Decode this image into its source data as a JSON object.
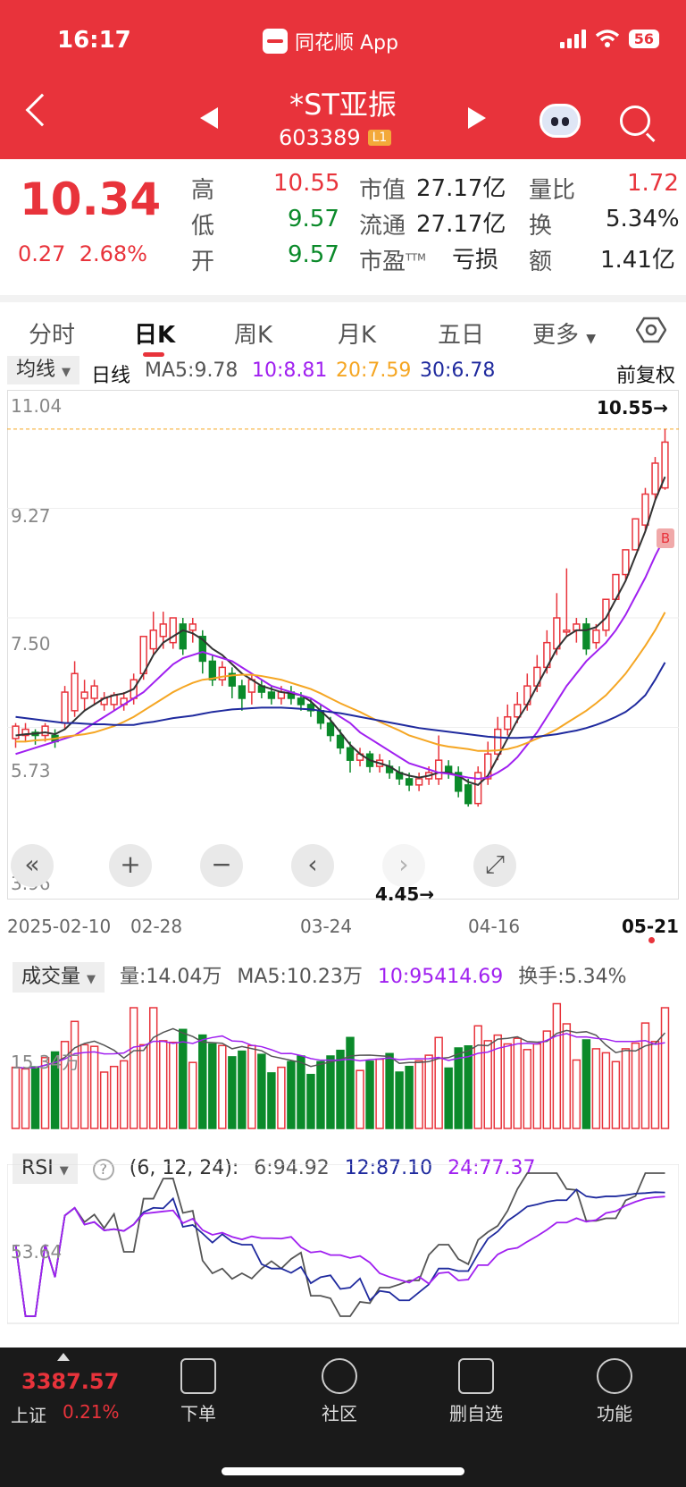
{
  "status": {
    "time": "16:17",
    "app": "同花顺 App",
    "battery": "56"
  },
  "header": {
    "name": "*ST亚振",
    "code": "603389",
    "level": "L1"
  },
  "quote": {
    "price": "10.34",
    "change": "0.27",
    "change_pct": "2.68%",
    "high_label": "高",
    "high": "10.55",
    "low_label": "低",
    "low": "9.57",
    "open_label": "开",
    "open": "9.57",
    "mktcap_label": "市值",
    "mktcap": "27.17亿",
    "float_label": "流通",
    "float": "27.17亿",
    "pe_label": "市盈",
    "pe_sup": "TTM",
    "pe": "亏损",
    "vr_label": "量比",
    "vr": "1.72",
    "turn_label": "换",
    "turn": "5.34%",
    "amt_label": "额",
    "amt": "1.41亿"
  },
  "tabs": [
    "分时",
    "日K",
    "周K",
    "月K",
    "五日",
    "更多"
  ],
  "ma_bar": {
    "btn": "均线",
    "period": "日线",
    "ma5": "MA5:9.78",
    "ma10": "10:8.81",
    "ma20": "20:7.59",
    "ma30": "30:6.78",
    "adjust": "前复权"
  },
  "kline": {
    "y_ticks": [
      "11.04",
      "9.27",
      "7.50",
      "5.73",
      "3.96"
    ],
    "max_label": "10.55→",
    "min_label": "4.45→",
    "b_marker": "B",
    "dates": [
      "2025-02-10",
      "02-28",
      "03-24",
      "04-16",
      "05-21"
    ]
  },
  "volume": {
    "btn": "成交量",
    "vol": "量:14.04万",
    "ma5": "MA5:10.23万",
    "ma10": "10:95414.69",
    "turn": "换手:5.34%",
    "y_tick": "15.34万"
  },
  "rsi": {
    "btn": "RSI",
    "help": "?",
    "params": "(6, 12, 24):",
    "r6": "6:94.92",
    "r12": "12:87.10",
    "r24": "24:77.37",
    "y_tick": "53.64"
  },
  "bottom": {
    "index_value": "3387.57",
    "index_name": "上证",
    "index_pct": "0.21%",
    "items": [
      "下单",
      "社区",
      "删自选",
      "功能"
    ]
  },
  "colors": {
    "red": "#e8333b",
    "green": "#0b8a2a",
    "ma5": "#333333",
    "ma10": "#a020f0",
    "ma20": "#f5a623",
    "ma30": "#1f2a9e"
  },
  "chart_data": {
    "type": "candlestick",
    "y_range": [
      3.96,
      11.04
    ],
    "candles": [
      [
        5.55,
        5.75,
        5.4,
        5.8
      ],
      [
        5.6,
        5.7,
        5.5,
        5.8
      ],
      [
        5.65,
        5.6,
        5.45,
        5.7
      ],
      [
        5.6,
        5.75,
        5.5,
        5.8
      ],
      [
        5.6,
        5.5,
        5.4,
        5.7
      ],
      [
        5.8,
        6.3,
        5.7,
        6.4
      ],
      [
        6.0,
        6.6,
        5.9,
        6.8
      ],
      [
        6.2,
        6.3,
        6.0,
        6.5
      ],
      [
        6.2,
        6.4,
        6.1,
        6.5
      ],
      [
        6.1,
        6.2,
        6.0,
        6.3
      ],
      [
        6.1,
        6.25,
        6.0,
        6.3
      ],
      [
        6.1,
        6.2,
        6.0,
        6.3
      ],
      [
        6.2,
        6.5,
        6.1,
        6.6
      ],
      [
        6.6,
        7.2,
        6.5,
        7.2
      ],
      [
        7.0,
        7.3,
        6.9,
        7.6
      ],
      [
        7.2,
        7.4,
        7.0,
        7.6
      ],
      [
        7.1,
        7.5,
        7.0,
        7.5
      ],
      [
        7.4,
        7.0,
        6.9,
        7.5
      ],
      [
        7.3,
        7.4,
        7.1,
        7.5
      ],
      [
        7.2,
        6.8,
        6.6,
        7.3
      ],
      [
        6.8,
        6.5,
        6.4,
        6.9
      ],
      [
        6.5,
        6.7,
        6.4,
        6.8
      ],
      [
        6.6,
        6.4,
        6.2,
        6.7
      ],
      [
        6.4,
        6.2,
        6.0,
        6.5
      ],
      [
        6.3,
        6.5,
        6.1,
        6.6
      ],
      [
        6.4,
        6.3,
        6.2,
        6.5
      ],
      [
        6.3,
        6.2,
        6.1,
        6.4
      ],
      [
        6.2,
        6.3,
        6.1,
        6.4
      ],
      [
        6.3,
        6.2,
        6.1,
        6.4
      ],
      [
        6.2,
        6.1,
        6.0,
        6.3
      ],
      [
        6.1,
        6.0,
        5.9,
        6.2
      ],
      [
        6.0,
        5.8,
        5.7,
        6.1
      ],
      [
        5.8,
        5.6,
        5.5,
        5.9
      ],
      [
        5.6,
        5.4,
        5.3,
        5.7
      ],
      [
        5.4,
        5.2,
        5.0,
        5.5
      ],
      [
        5.2,
        5.3,
        5.1,
        5.4
      ],
      [
        5.3,
        5.1,
        5.0,
        5.35
      ],
      [
        5.1,
        5.2,
        5.0,
        5.3
      ],
      [
        5.1,
        5.0,
        4.9,
        5.2
      ],
      [
        5.0,
        4.9,
        4.8,
        5.1
      ],
      [
        4.9,
        4.8,
        4.7,
        5.0
      ],
      [
        4.8,
        4.9,
        4.7,
        5.0
      ],
      [
        4.9,
        5.0,
        4.8,
        5.1
      ],
      [
        4.9,
        5.2,
        4.8,
        5.6
      ],
      [
        5.1,
        5.0,
        4.9,
        5.2
      ],
      [
        5.0,
        4.7,
        4.6,
        5.1
      ],
      [
        4.8,
        4.5,
        4.45,
        4.9
      ],
      [
        4.5,
        5.0,
        4.45,
        5.1
      ],
      [
        4.9,
        5.3,
        4.8,
        5.5
      ],
      [
        5.3,
        5.7,
        5.2,
        5.9
      ],
      [
        5.7,
        5.9,
        5.6,
        6.1
      ],
      [
        5.9,
        6.1,
        5.8,
        6.3
      ],
      [
        6.1,
        6.4,
        6.0,
        6.6
      ],
      [
        6.4,
        6.7,
        6.3,
        6.9
      ],
      [
        6.7,
        7.1,
        6.6,
        7.3
      ],
      [
        7.0,
        7.5,
        6.9,
        7.9
      ],
      [
        7.3,
        7.3,
        7.2,
        8.3
      ],
      [
        7.3,
        7.4,
        7.1,
        7.5
      ],
      [
        7.4,
        7.0,
        6.9,
        7.5
      ],
      [
        7.1,
        7.3,
        7.0,
        7.4
      ],
      [
        7.3,
        7.8,
        7.2,
        7.8
      ],
      [
        7.8,
        8.2,
        7.8,
        8.2
      ],
      [
        8.2,
        8.6,
        8.1,
        8.6
      ],
      [
        8.6,
        9.1,
        8.6,
        9.1
      ],
      [
        9.0,
        9.5,
        8.9,
        9.6
      ],
      [
        9.5,
        10.0,
        9.4,
        10.1
      ],
      [
        9.6,
        10.34,
        9.57,
        10.55
      ]
    ],
    "ma5": [
      5.6,
      5.62,
      5.63,
      5.65,
      5.62,
      5.7,
      5.85,
      6.0,
      6.1,
      6.2,
      6.25,
      6.28,
      6.35,
      6.6,
      6.9,
      7.1,
      7.2,
      7.3,
      7.25,
      7.15,
      7.0,
      6.9,
      6.75,
      6.6,
      6.5,
      6.4,
      6.35,
      6.3,
      6.28,
      6.25,
      6.15,
      6.0,
      5.85,
      5.65,
      5.45,
      5.3,
      5.2,
      5.15,
      5.1,
      5.0,
      4.95,
      4.92,
      4.95,
      5.0,
      5.0,
      4.95,
      4.85,
      4.8,
      4.95,
      5.25,
      5.55,
      5.85,
      6.1,
      6.4,
      6.7,
      7.0,
      7.2,
      7.3,
      7.3,
      7.35,
      7.5,
      7.8,
      8.1,
      8.5,
      8.9,
      9.4,
      9.78
    ],
    "ma10": [
      5.3,
      5.35,
      5.4,
      5.45,
      5.5,
      5.55,
      5.6,
      5.7,
      5.8,
      5.9,
      6.0,
      6.1,
      6.2,
      6.3,
      6.45,
      6.6,
      6.75,
      6.85,
      6.9,
      6.95,
      6.9,
      6.85,
      6.8,
      6.7,
      6.6,
      6.5,
      6.4,
      6.35,
      6.3,
      6.25,
      6.2,
      6.1,
      6.0,
      5.9,
      5.8,
      5.65,
      5.55,
      5.45,
      5.35,
      5.25,
      5.15,
      5.1,
      5.05,
      5.0,
      4.98,
      4.95,
      4.92,
      4.9,
      4.92,
      5.0,
      5.1,
      5.25,
      5.45,
      5.65,
      5.9,
      6.15,
      6.4,
      6.6,
      6.8,
      6.95,
      7.1,
      7.3,
      7.55,
      7.85,
      8.15,
      8.5,
      8.81
    ],
    "ma20": [
      5.5,
      5.5,
      5.52,
      5.53,
      5.55,
      5.58,
      5.6,
      5.62,
      5.65,
      5.7,
      5.75,
      5.82,
      5.9,
      6.0,
      6.1,
      6.2,
      6.3,
      6.38,
      6.45,
      6.5,
      6.52,
      6.55,
      6.57,
      6.58,
      6.58,
      6.56,
      6.53,
      6.5,
      6.45,
      6.4,
      6.35,
      6.28,
      6.2,
      6.12,
      6.05,
      5.98,
      5.9,
      5.82,
      5.75,
      5.68,
      5.6,
      5.55,
      5.5,
      5.45,
      5.42,
      5.4,
      5.38,
      5.35,
      5.35,
      5.36,
      5.38,
      5.42,
      5.48,
      5.55,
      5.62,
      5.7,
      5.8,
      5.9,
      6.0,
      6.12,
      6.25,
      6.42,
      6.6,
      6.82,
      7.05,
      7.3,
      7.59
    ],
    "ma30": [
      5.9,
      5.88,
      5.86,
      5.84,
      5.82,
      5.8,
      5.8,
      5.79,
      5.78,
      5.78,
      5.77,
      5.77,
      5.77,
      5.8,
      5.82,
      5.85,
      5.88,
      5.9,
      5.92,
      5.95,
      5.98,
      6.0,
      6.02,
      6.03,
      6.04,
      6.05,
      6.05,
      6.05,
      6.04,
      6.03,
      6.02,
      6.0,
      5.98,
      5.96,
      5.93,
      5.9,
      5.87,
      5.84,
      5.81,
      5.78,
      5.75,
      5.72,
      5.7,
      5.68,
      5.66,
      5.64,
      5.62,
      5.6,
      5.58,
      5.57,
      5.56,
      5.56,
      5.57,
      5.58,
      5.6,
      5.62,
      5.65,
      5.68,
      5.72,
      5.77,
      5.83,
      5.9,
      5.98,
      6.1,
      6.25,
      6.5,
      6.78
    ]
  }
}
